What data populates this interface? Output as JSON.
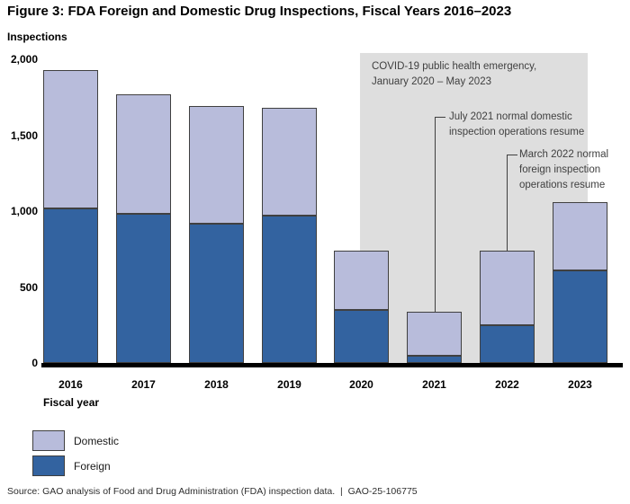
{
  "title": "Figure 3: FDA Foreign and Domestic Drug Inspections, Fiscal Years 2016–2023",
  "y_axis_label": "Inspections",
  "x_axis_label": "Fiscal year",
  "source_line": "Source: GAO analysis of Food and Drug Administration (FDA) inspection data.  |  GAO-25-106775",
  "colors": {
    "domestic": "#b8bcdb",
    "foreign": "#3363a0",
    "covid_region": "#dedede",
    "annotation": "#3f3f3f"
  },
  "legend": {
    "items": [
      {
        "label": "Domestic",
        "color": "#b8bcdb"
      },
      {
        "label": "Foreign",
        "color": "#3363a0"
      }
    ]
  },
  "annotations": {
    "covid": {
      "line1": "COVID-19 public health emergency,",
      "line2": "January 2020 – May 2023"
    },
    "july2021": {
      "line1": "July 2021 normal domestic",
      "line2": "inspection operations resume"
    },
    "march2022": {
      "line1": "March 2022 normal",
      "line2": "foreign inspection",
      "line3": "operations resume"
    }
  },
  "chart_data": {
    "type": "bar",
    "stacked": true,
    "title": "Figure 3: FDA Foreign and Domestic Drug Inspections, Fiscal Years 2016–2023",
    "xlabel": "Fiscal year",
    "ylabel": "Inspections",
    "ylim": [
      0,
      2000
    ],
    "grid": false,
    "legend_position": "bottom-left",
    "categories": [
      "2016",
      "2017",
      "2018",
      "2019",
      "2020",
      "2021",
      "2022",
      "2023"
    ],
    "series": [
      {
        "name": "Foreign",
        "color": "#3363a0",
        "values": [
          1020,
          980,
          920,
          970,
          350,
          50,
          250,
          610
        ]
      },
      {
        "name": "Domestic",
        "color": "#b8bcdb",
        "values": [
          910,
          790,
          770,
          710,
          390,
          290,
          490,
          450
        ]
      }
    ],
    "totals": [
      1930,
      1770,
      1690,
      1680,
      740,
      340,
      740,
      1060
    ],
    "yticks": [
      {
        "label": "0",
        "value": 0
      },
      {
        "label": "500",
        "value": 500
      },
      {
        "label": "1,000",
        "value": 1000
      },
      {
        "label": "1,500",
        "value": 1500
      },
      {
        "label": "2,000",
        "value": 2000
      }
    ],
    "shaded_region_label": "COVID-19 public health emergency, January 2020 – May 2023",
    "annotations": [
      {
        "text": "July 2021 normal domestic inspection operations resume",
        "points_to": "2021"
      },
      {
        "text": "March 2022 normal foreign inspection operations resume",
        "points_to": "2022"
      }
    ]
  }
}
